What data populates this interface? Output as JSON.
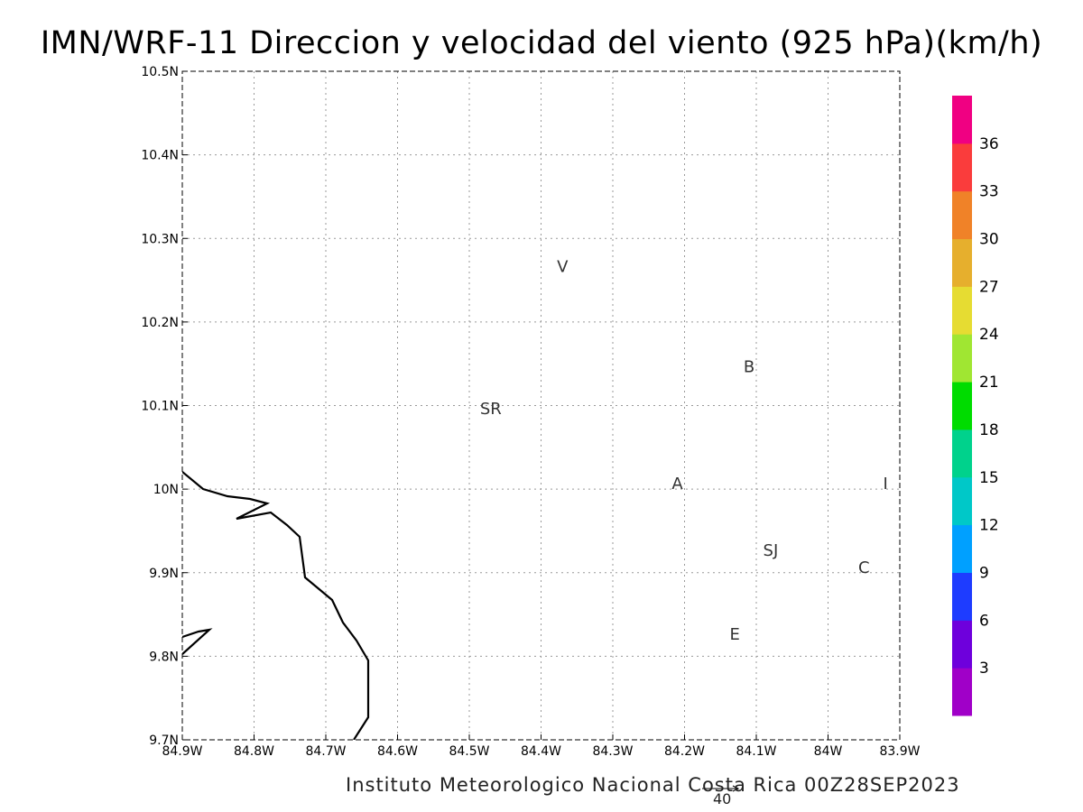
{
  "title": "IMN/WRF-11 Direccion y velocidad del viento (925 hPa)(km/h)",
  "credit": "Instituto Meteorologico Nacional Costa Rica 00Z28SEP2023",
  "reference_vector": {
    "label": "40",
    "speed": 40
  },
  "map": {
    "lon_range": [
      -84.9,
      -83.9
    ],
    "lat_range": [
      9.7,
      10.5
    ],
    "x_tick_labels": [
      "84.9W",
      "84.8W",
      "84.7W",
      "84.6W",
      "84.5W",
      "84.4W",
      "84.3W",
      "84.2W",
      "84.1W",
      "84W",
      "83.9W"
    ],
    "y_tick_labels": [
      "9.7N",
      "9.8N",
      "9.9N",
      "10N",
      "10.1N",
      "10.2N",
      "10.3N",
      "10.4N",
      "10.5N"
    ],
    "grid": "dotted",
    "cities": [
      {
        "label": "V",
        "lon": -84.37,
        "lat": 10.26
      },
      {
        "label": "B",
        "lon": -84.11,
        "lat": 10.14
      },
      {
        "label": "SR",
        "lon": -84.47,
        "lat": 10.09
      },
      {
        "label": "A",
        "lon": -84.21,
        "lat": 10.0
      },
      {
        "label": "I",
        "lon": -83.92,
        "lat": 10.0
      },
      {
        "label": "SJ",
        "lon": -84.08,
        "lat": 9.92
      },
      {
        "label": "C",
        "lon": -83.95,
        "lat": 9.9
      },
      {
        "label": "E",
        "lon": -84.13,
        "lat": 9.82
      }
    ]
  },
  "colorbar": {
    "labels": [
      "3",
      "6",
      "9",
      "12",
      "15",
      "18",
      "21",
      "24",
      "27",
      "30",
      "33",
      "36"
    ],
    "colors": [
      "#a000c8",
      "#6e00dc",
      "#1e3cff",
      "#00a0ff",
      "#00c8c8",
      "#00d28c",
      "#00dc00",
      "#a0e632",
      "#e6dc32",
      "#e6af2d",
      "#f08228",
      "#fa3c3c",
      "#f00082"
    ]
  }
}
